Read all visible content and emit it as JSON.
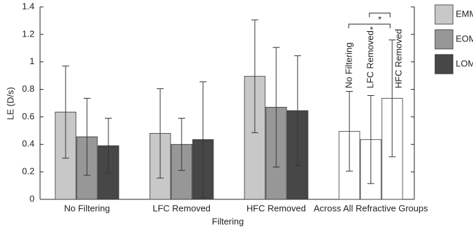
{
  "chart_data": {
    "type": "bar",
    "y_label": "LE (D/s)",
    "x_label": "Filtering",
    "categories": [
      "No Filtering",
      "LFC Removed",
      "HFC Removed",
      "Across All Refractive Groups"
    ],
    "series": [
      {
        "name": "EMM",
        "color": "#c8c8c8",
        "values": [
          0.635,
          0.48,
          0.895,
          null
        ],
        "errors": [
          0.335,
          0.325,
          0.41,
          null
        ]
      },
      {
        "name": "EOM",
        "color": "#979797",
        "values": [
          0.455,
          0.4,
          0.67,
          null
        ],
        "errors": [
          0.28,
          0.19,
          0.435,
          null
        ]
      },
      {
        "name": "LOM",
        "color": "#474747",
        "values": [
          0.39,
          0.435,
          0.645,
          null
        ],
        "errors": [
          0.2,
          0.42,
          0.4,
          null
        ]
      }
    ],
    "across": {
      "color": "#ffffff",
      "labels": [
        "No Filtering",
        "LFC Removed",
        "HFC Removed"
      ],
      "values": [
        0.495,
        0.435,
        0.735
      ],
      "errors": [
        0.29,
        0.32,
        0.425
      ]
    },
    "annotations": [
      "*",
      "*"
    ],
    "ylim": [
      0,
      1.4
    ],
    "yticks": [
      0,
      0.2,
      0.4,
      0.6,
      0.8,
      1,
      1.2,
      1.4
    ]
  }
}
